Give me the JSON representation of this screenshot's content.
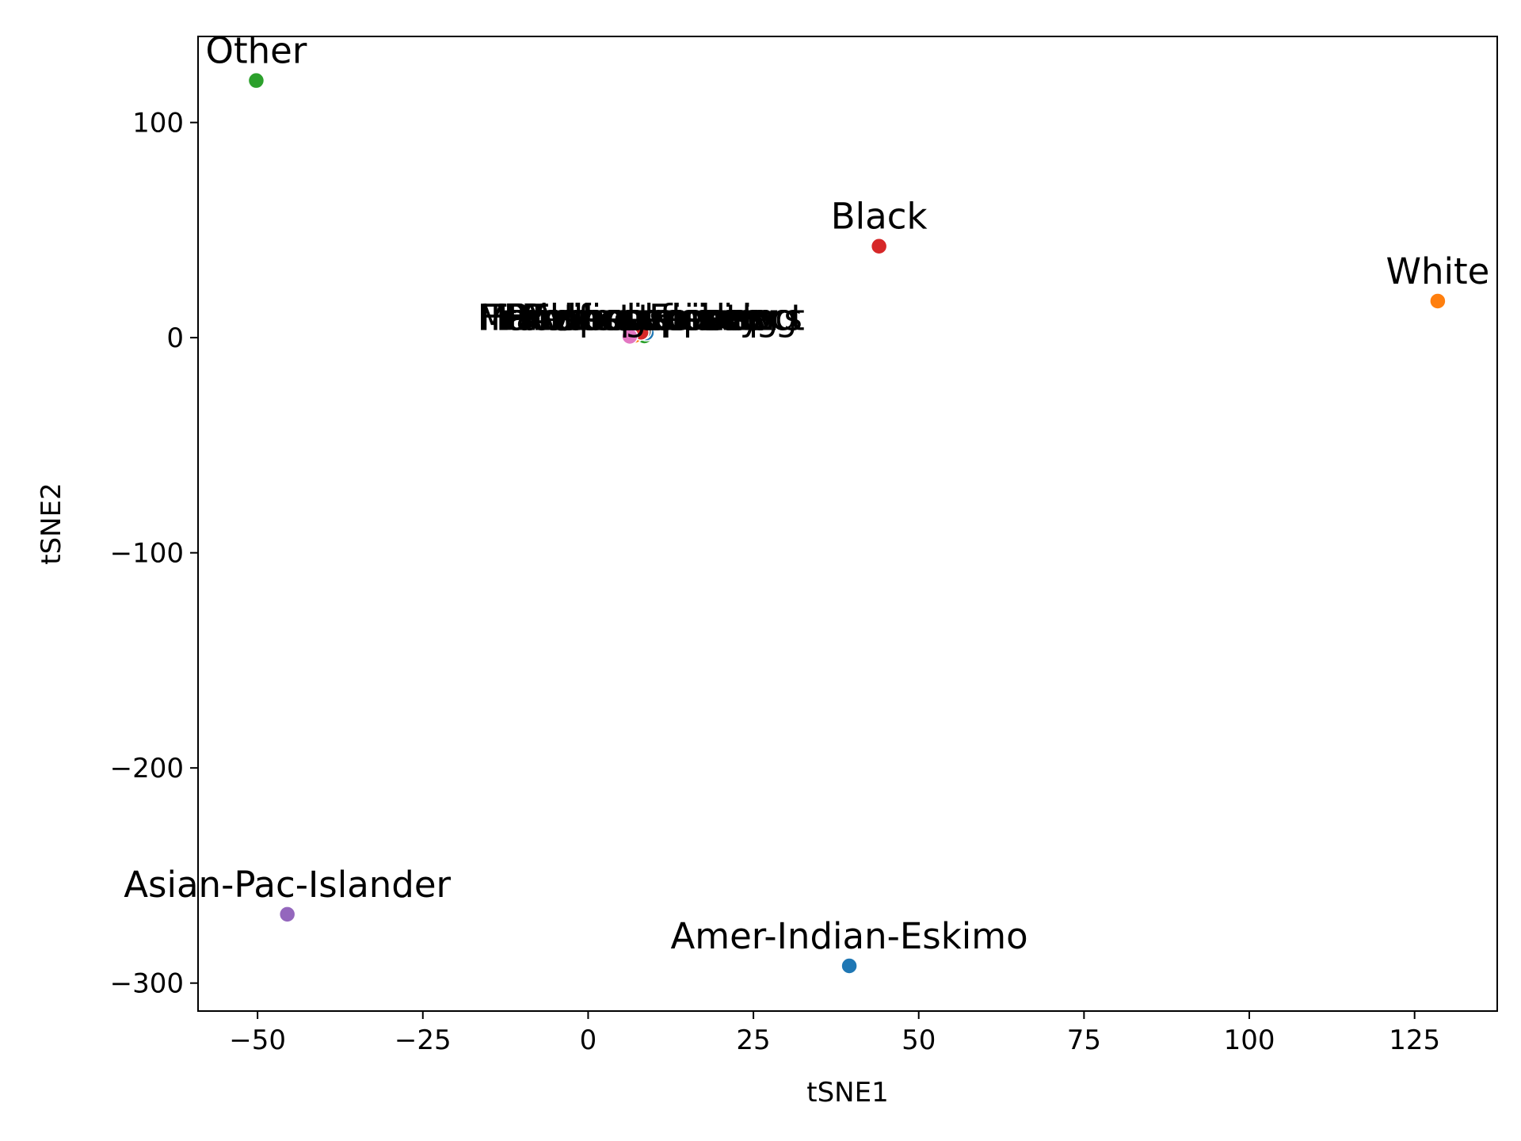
{
  "chart_data": {
    "type": "scatter",
    "xlabel": "tSNE1",
    "ylabel": "tSNE2",
    "xlim": [
      -59,
      137.5
    ],
    "ylim": [
      -313,
      140
    ],
    "xticks": [
      -50,
      -25,
      0,
      25,
      50,
      75,
      100,
      125
    ],
    "yticks": [
      -300,
      -200,
      -100,
      0,
      100
    ],
    "xtick_labels": [
      "−50",
      "−25",
      "0",
      "25",
      "50",
      "75",
      "100",
      "125"
    ],
    "ytick_labels": [
      "−300",
      "−200",
      "−100",
      "0",
      "100"
    ],
    "grid": false,
    "points": [
      {
        "label": "Amer-Indian-Eskimo",
        "x": 39.5,
        "y": -292,
        "color": "#1f77b4"
      },
      {
        "label": "White",
        "x": 128.5,
        "y": 17,
        "color": "#ff7f0e"
      },
      {
        "label": "Other",
        "x": -50.2,
        "y": 119.5,
        "color": "#2ca02c"
      },
      {
        "label": "Black",
        "x": 44,
        "y": 42.5,
        "color": "#d62728"
      },
      {
        "label": "Asian-Pac-Islander",
        "x": -45.5,
        "y": -268,
        "color": "#9467bd"
      }
    ],
    "cluster": {
      "labels": [
        "Tech-support",
        "Prof-specialty",
        "Handlers-cleaners",
        "Machine-op-inspct",
        "Adm-clerical",
        "Farming-fishing",
        "Transport-moving",
        "Priv-house-serv",
        "Protective-serv",
        "Armed-Forces"
      ],
      "points": [
        {
          "x": 8.2,
          "y": 1.5,
          "color": "#17becf"
        },
        {
          "x": 7.6,
          "y": 2.8,
          "color": "#bcbd22"
        },
        {
          "x": 8.5,
          "y": 0.8,
          "color": "#2ca02c"
        },
        {
          "x": 7.9,
          "y": 3.2,
          "color": "#9467bd"
        },
        {
          "x": 8.8,
          "y": 2.2,
          "color": "#1f77b4"
        },
        {
          "x": 7.2,
          "y": 1.9,
          "color": "#8c564b"
        },
        {
          "x": 8.4,
          "y": 3.0,
          "color": "#7f7f7f"
        },
        {
          "x": 7.0,
          "y": 1.0,
          "color": "#ff7f0e"
        },
        {
          "x": 8.0,
          "y": 2.5,
          "color": "#d62728"
        },
        {
          "x": 6.3,
          "y": 0.6,
          "color": "#e377c2"
        }
      ]
    }
  }
}
